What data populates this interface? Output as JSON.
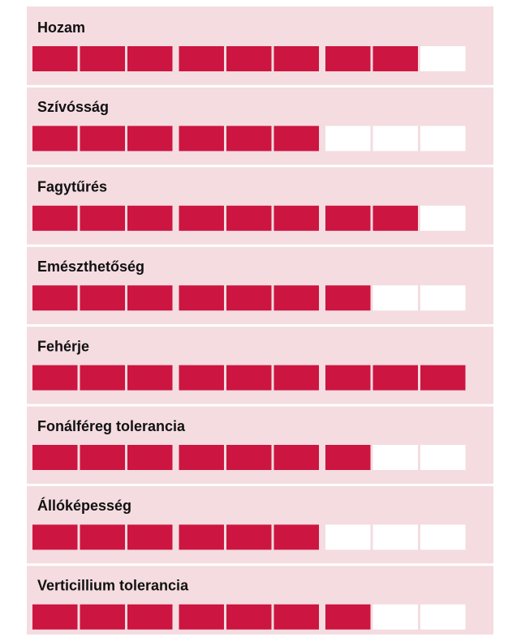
{
  "ratings": {
    "scale_max": 9,
    "group_size": 3,
    "filled_color": "#cc1540",
    "empty_color": "#ffffff",
    "items": [
      {
        "label": "Hozam",
        "value": 8
      },
      {
        "label": "Szívósság",
        "value": 6
      },
      {
        "label": "Fagytűrés",
        "value": 8
      },
      {
        "label": "Emészthetőség",
        "value": 7
      },
      {
        "label": "Fehérje",
        "value": 9
      },
      {
        "label": "Fonálféreg tolerancia",
        "value": 7
      },
      {
        "label": "Állóképesség",
        "value": 6
      },
      {
        "label": "Verticillium tolerancia",
        "value": 7
      }
    ]
  }
}
